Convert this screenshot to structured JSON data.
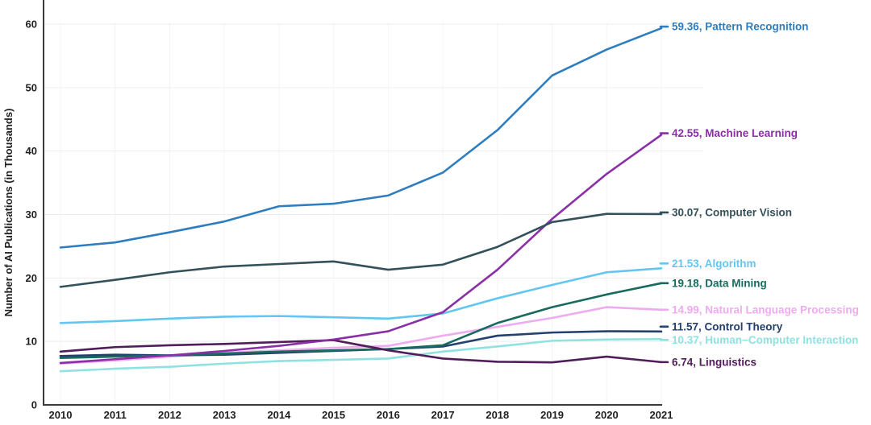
{
  "chart_data": {
    "type": "line",
    "title": "",
    "xlabel": "",
    "ylabel": "Number of AI Publications (in Thousands)",
    "x": [
      2010,
      2011,
      2012,
      2013,
      2014,
      2015,
      2016,
      2017,
      2018,
      2019,
      2020,
      2021
    ],
    "ylim": [
      0,
      60
    ],
    "yticks": [
      0,
      10,
      20,
      30,
      40,
      50,
      60
    ],
    "grid": true,
    "legend_position": "right-end-labels",
    "axis_color": "#3b3b3b",
    "gridline_color": "#ededed",
    "series": [
      {
        "name": "Pattern Recognition",
        "color": "#2e7ebf",
        "end_label": "59.36, Pattern Recognition",
        "end_value": 59.36,
        "values": [
          24.8,
          25.6,
          27.2,
          28.9,
          31.3,
          31.7,
          33.0,
          36.6,
          43.3,
          51.9,
          56.0,
          59.36
        ]
      },
      {
        "name": "Machine Learning",
        "color": "#8a2fa6",
        "end_label": "42.55, Machine Learning",
        "end_value": 42.55,
        "values": [
          6.6,
          7.2,
          7.8,
          8.5,
          9.3,
          10.3,
          11.6,
          14.6,
          21.3,
          29.3,
          36.4,
          42.55
        ]
      },
      {
        "name": "Computer Vision",
        "color": "#33515a",
        "end_label": "30.07, Computer Vision",
        "end_value": 30.07,
        "values": [
          18.6,
          19.7,
          20.9,
          21.8,
          22.2,
          22.6,
          21.3,
          22.1,
          24.9,
          28.8,
          30.1,
          30.07
        ]
      },
      {
        "name": "Algorithm",
        "color": "#63c6f0",
        "end_label": "21.53, Algorithm",
        "end_value": 21.53,
        "values": [
          12.9,
          13.2,
          13.6,
          13.9,
          14.0,
          13.8,
          13.6,
          14.4,
          16.8,
          18.9,
          20.9,
          21.53
        ]
      },
      {
        "name": "Data Mining",
        "color": "#176a5d",
        "end_label": "19.18, Data Mining",
        "end_value": 19.18,
        "values": [
          7.4,
          7.6,
          7.8,
          8.1,
          8.4,
          8.6,
          8.8,
          9.4,
          12.9,
          15.4,
          17.4,
          19.18
        ]
      },
      {
        "name": "Natural Language Processing",
        "color": "#eeabef",
        "end_label": "14.99, Natural Language Processing",
        "end_value": 14.99,
        "values": [
          6.5,
          7.0,
          7.6,
          8.2,
          8.6,
          9.0,
          9.3,
          10.9,
          12.3,
          13.7,
          15.4,
          14.99
        ]
      },
      {
        "name": "Control Theory",
        "color": "#23406f",
        "end_label": "11.57, Control Theory",
        "end_value": 11.57,
        "values": [
          7.7,
          7.9,
          7.8,
          7.9,
          8.2,
          8.5,
          8.8,
          9.2,
          10.9,
          11.4,
          11.6,
          11.57
        ]
      },
      {
        "name": "Human-Computer Interaction",
        "color": "#90e2e2",
        "end_label": "10.37, Human−Computer Interaction",
        "end_value": 10.37,
        "values": [
          5.3,
          5.7,
          6.0,
          6.5,
          6.9,
          7.1,
          7.3,
          8.4,
          9.2,
          10.1,
          10.3,
          10.37
        ]
      },
      {
        "name": "Linguistics",
        "color": "#4f1e58",
        "end_label": "6.74, Linguistics",
        "end_value": 6.74,
        "values": [
          8.4,
          9.1,
          9.4,
          9.6,
          9.9,
          10.2,
          8.6,
          7.3,
          6.8,
          6.7,
          7.6,
          6.74
        ]
      }
    ]
  }
}
